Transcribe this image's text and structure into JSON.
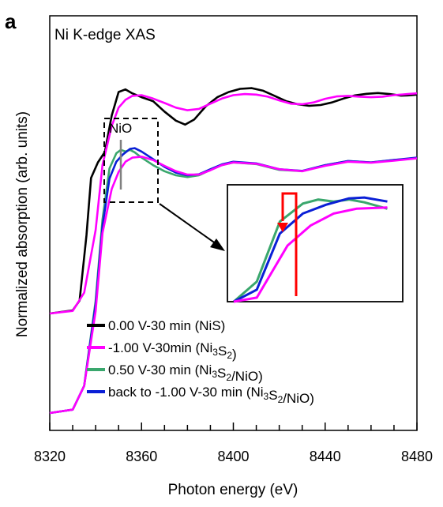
{
  "chart_data": {
    "type": "line",
    "panel_label": "a",
    "title": "Ni K-edge XAS",
    "xlabel": "Photon energy (eV)",
    "ylabel": "Normalized absorption (arb. units)",
    "xlim": [
      8320,
      8480
    ],
    "x_ticks": [
      8320,
      8360,
      8400,
      8440,
      8480
    ],
    "y_ticks_shown": false,
    "annotation_nio": "NiO",
    "legend_position": "bottom-left, inside",
    "series": [
      {
        "name": "0.00 V-30 min (NiS)",
        "label_parts": [
          "0.00 V-30 min (NiS)"
        ],
        "color": "#000000",
        "group": "upper",
        "x": [
          8320,
          8330,
          8333,
          8336,
          8338,
          8341,
          8344,
          8347,
          8350,
          8353,
          8356,
          8360,
          8365,
          8370,
          8375,
          8379,
          8383,
          8388,
          8393,
          8398,
          8403,
          8408,
          8413,
          8418,
          8423,
          8428,
          8433,
          8438,
          8443,
          8448,
          8453,
          8458,
          8463,
          8468,
          8473,
          8476,
          8480
        ],
        "y": [
          0.0,
          0.012,
          0.05,
          0.3,
          0.52,
          0.58,
          0.62,
          0.76,
          0.85,
          0.86,
          0.845,
          0.83,
          0.815,
          0.775,
          0.74,
          0.725,
          0.745,
          0.795,
          0.83,
          0.85,
          0.862,
          0.865,
          0.855,
          0.835,
          0.815,
          0.803,
          0.797,
          0.8,
          0.81,
          0.825,
          0.837,
          0.843,
          0.846,
          0.842,
          0.836,
          0.837,
          0.84
        ]
      },
      {
        "name": "-1.00 V-30min (Ni3S2)",
        "label_parts": [
          "-1.00 V-30min (Ni",
          "3",
          "S",
          "2",
          ")"
        ],
        "color": "#ff00ff",
        "group": "upper",
        "x": [
          8320,
          8330,
          8335,
          8340,
          8343,
          8347,
          8350,
          8353,
          8356,
          8360,
          8365,
          8370,
          8375,
          8380,
          8385,
          8390,
          8395,
          8400,
          8405,
          8410,
          8415,
          8420,
          8425,
          8430,
          8435,
          8440,
          8445,
          8450,
          8455,
          8460,
          8465,
          8470,
          8476,
          8480
        ],
        "y": [
          0.0,
          0.01,
          0.08,
          0.32,
          0.57,
          0.72,
          0.79,
          0.82,
          0.835,
          0.838,
          0.825,
          0.808,
          0.79,
          0.78,
          0.785,
          0.805,
          0.825,
          0.838,
          0.842,
          0.84,
          0.832,
          0.818,
          0.805,
          0.803,
          0.81,
          0.824,
          0.833,
          0.835,
          0.832,
          0.83,
          0.832,
          0.838,
          0.842,
          0.845
        ]
      },
      {
        "name": "0.50 V-30 min (Ni3S2/NiO)",
        "label_parts": [
          "0.50 V-30 min (Ni",
          "3",
          "S",
          "2",
          "/NiO)"
        ],
        "color": "#3aa76d",
        "group": "lower",
        "x": [
          8320,
          8330,
          8335,
          8340,
          8343,
          8346,
          8349,
          8351,
          8353,
          8355,
          8357,
          8360,
          8365,
          8370,
          8375,
          8380,
          8385,
          8390,
          8395,
          8400,
          8410,
          8420,
          8430,
          8440,
          8450,
          8460,
          8470,
          8480
        ],
        "y": [
          0.0,
          0.01,
          0.08,
          0.33,
          0.57,
          0.72,
          0.765,
          0.775,
          0.77,
          0.775,
          0.768,
          0.752,
          0.73,
          0.712,
          0.7,
          0.695,
          0.7,
          0.716,
          0.73,
          0.738,
          0.733,
          0.716,
          0.712,
          0.73,
          0.742,
          0.738,
          0.745,
          0.75
        ]
      },
      {
        "name": "back to -1.00 V-30 min (Ni3S2/NiO)",
        "label_parts": [
          "back to -1.00 V-30 min (Ni",
          "3",
          "S",
          "2",
          "/NiO)"
        ],
        "color": "#0a1fd6",
        "group": "lower",
        "x": [
          8320,
          8330,
          8335,
          8340,
          8343,
          8346,
          8349,
          8352,
          8355,
          8357,
          8360,
          8365,
          8370,
          8375,
          8380,
          8385,
          8390,
          8395,
          8400,
          8410,
          8420,
          8430,
          8440,
          8450,
          8460,
          8470,
          8480
        ],
        "y": [
          0.0,
          0.01,
          0.08,
          0.32,
          0.55,
          0.69,
          0.74,
          0.762,
          0.778,
          0.78,
          0.77,
          0.748,
          0.725,
          0.708,
          0.7,
          0.703,
          0.718,
          0.732,
          0.74,
          0.735,
          0.718,
          0.713,
          0.73,
          0.742,
          0.738,
          0.745,
          0.752
        ]
      },
      {
        "name": "Ni3S2 reference (lower stack)",
        "legend": false,
        "color": "#ff00ff",
        "group": "lower",
        "x": [
          8320,
          8330,
          8335,
          8340,
          8343,
          8347,
          8350,
          8353,
          8356,
          8360,
          8365,
          8370,
          8375,
          8380,
          8385,
          8390,
          8395,
          8400,
          8410,
          8420,
          8430,
          8440,
          8450,
          8460,
          8470,
          8480
        ],
        "y": [
          0.0,
          0.01,
          0.08,
          0.3,
          0.53,
          0.66,
          0.71,
          0.74,
          0.752,
          0.755,
          0.745,
          0.728,
          0.712,
          0.702,
          0.702,
          0.715,
          0.73,
          0.738,
          0.734,
          0.718,
          0.712,
          0.728,
          0.74,
          0.737,
          0.743,
          0.75
        ]
      }
    ],
    "inset": {
      "description_hidden": true,
      "xlim": [
        8340,
        8362
      ],
      "ylim": [
        0.52,
        0.8
      ],
      "marker": {
        "type": "red bracket with arrow",
        "color": "#ff0000"
      }
    },
    "zoom_box": {
      "style": "dashed",
      "color": "#000000",
      "x_range": [
        8344,
        8365
      ]
    }
  }
}
